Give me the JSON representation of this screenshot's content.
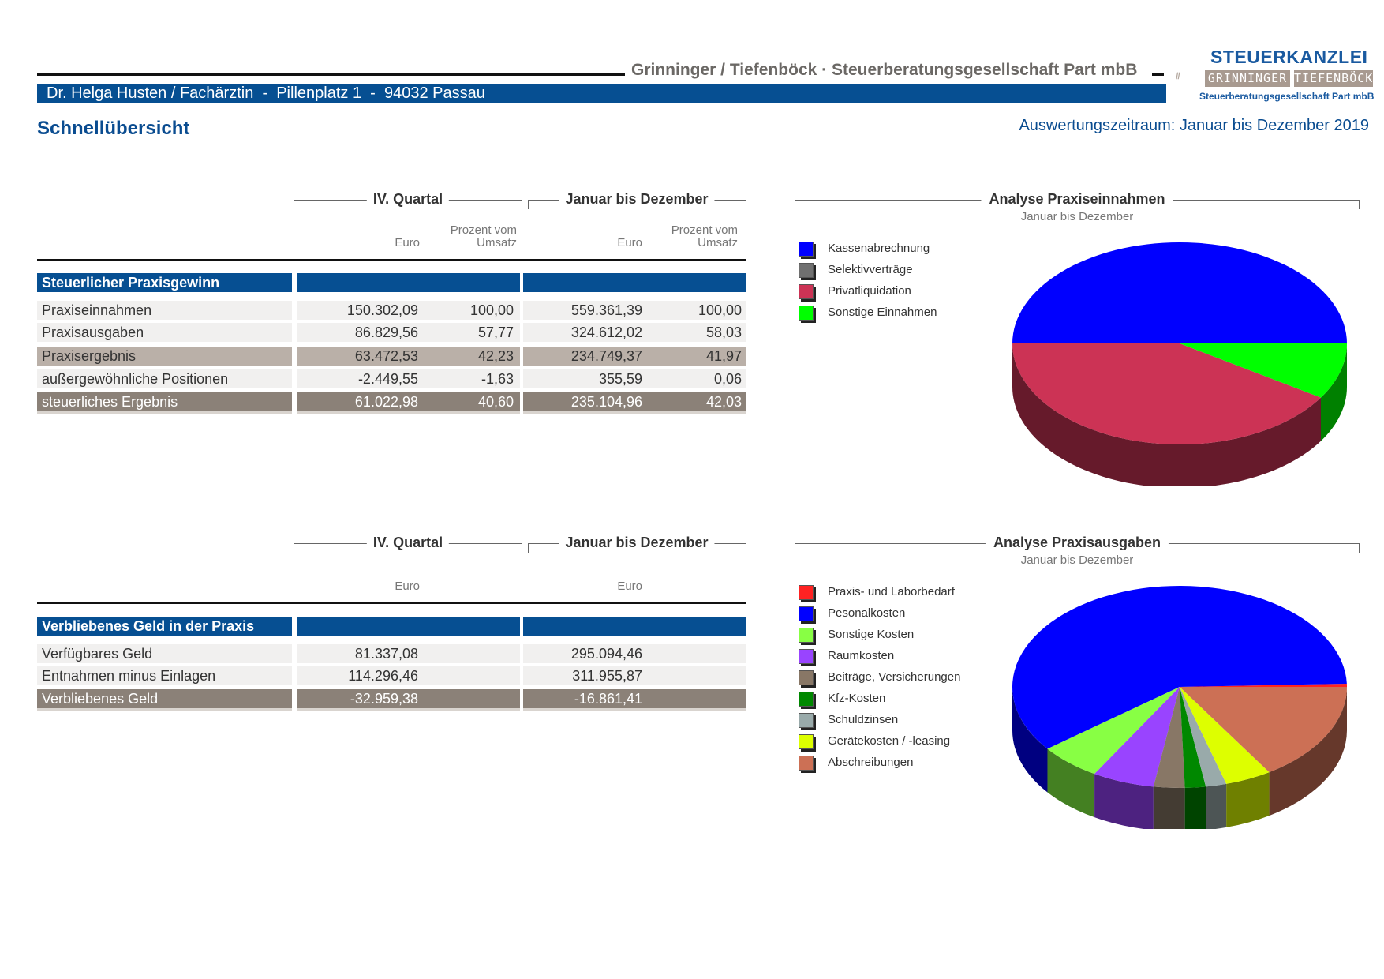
{
  "header": {
    "firm": "Grinninger / Tiefenböck · Steuerberatungsgesellschaft Part mbB",
    "client": "Dr. Helga Husten / Fachärztin  -  Pillenplatz 1  -  94032 Passau",
    "title": "Schnellübersicht",
    "period": "Auswertungszeitraum: Januar bis Dezember 2019"
  },
  "logo": {
    "title": "STEUERKANZLEI",
    "left_box": "GRINNINGER",
    "right_box": "TIEFENBÖCK",
    "sub": "Steuerberatungsgesellschaft Part mbB"
  },
  "table1": {
    "col_group_q": "IV. Quartal",
    "col_group_y": "Januar bis Dezember",
    "col_euro": "Euro",
    "col_pct_1": "Prozent vom",
    "col_pct_2": "Umsatz",
    "section": "Steuerlicher Praxisgewinn",
    "rows": [
      {
        "label": "Praxiseinnahmen",
        "q_euro": "150.302,09",
        "q_pct": "100,00",
        "y_euro": "559.361,39",
        "y_pct": "100,00"
      },
      {
        "label": "Praxisausgaben",
        "q_euro": "86.829,56",
        "q_pct": "57,77",
        "y_euro": "324.612,02",
        "y_pct": "58,03"
      },
      {
        "label": "Praxisergebnis",
        "q_euro": "63.472,53",
        "q_pct": "42,23",
        "y_euro": "234.749,37",
        "y_pct": "41,97"
      },
      {
        "label": "außergewöhnliche Positionen",
        "q_euro": "-2.449,55",
        "q_pct": "-1,63",
        "y_euro": "355,59",
        "y_pct": "0,06"
      },
      {
        "label": "steuerliches Ergebnis",
        "q_euro": "61.022,98",
        "q_pct": "40,60",
        "y_euro": "235.104,96",
        "y_pct": "42,03"
      }
    ]
  },
  "table2": {
    "col_group_q": "IV. Quartal",
    "col_group_y": "Januar bis Dezember",
    "col_euro": "Euro",
    "section": "Verbliebenes Geld in der Praxis",
    "rows": [
      {
        "label": "Verfügbares Geld",
        "q_euro": "81.337,08",
        "y_euro": "295.094,46"
      },
      {
        "label": "Entnahmen minus Einlagen",
        "q_euro": "114.296,46",
        "y_euro": "311.955,87"
      },
      {
        "label": "Verbliebenes Geld",
        "q_euro": "-32.959,38",
        "y_euro": "-16.861,41"
      }
    ]
  },
  "chart_data": [
    {
      "type": "pie",
      "title": "Analyse Praxiseinnahmen",
      "subtitle": "Januar bis Dezember",
      "legend": "left",
      "labels": [
        "Kassenabrechnung",
        "Selektivverträge",
        "Privatliquidation",
        "Sonstige Einnahmen"
      ],
      "colors": [
        "#0000ff",
        "#707070",
        "#cc3355",
        "#00ff00"
      ],
      "values": [
        50.0,
        0.0,
        41.0,
        9.0
      ]
    },
    {
      "type": "pie",
      "title": "Analyse Praxisausgaben",
      "subtitle": "Januar bis Dezember",
      "legend": "left",
      "labels": [
        "Praxis- und Laborbedarf",
        "Pesonalkosten",
        "Sonstige Kosten",
        "Raumkosten",
        "Beiträge, Versicherungen",
        "Kfz-Kosten",
        "Schuldzinsen",
        "Gerätekosten / -leasing",
        "Abschreibungen"
      ],
      "colors": [
        "#ff2222",
        "#0000ff",
        "#88ff44",
        "#9944ff",
        "#887766",
        "#008800",
        "#99aaaa",
        "#ddff00",
        "#cc7055"
      ],
      "values": [
        0.5,
        60.0,
        6.0,
        6.0,
        3.0,
        2.0,
        2.0,
        4.5,
        16.0
      ]
    }
  ]
}
